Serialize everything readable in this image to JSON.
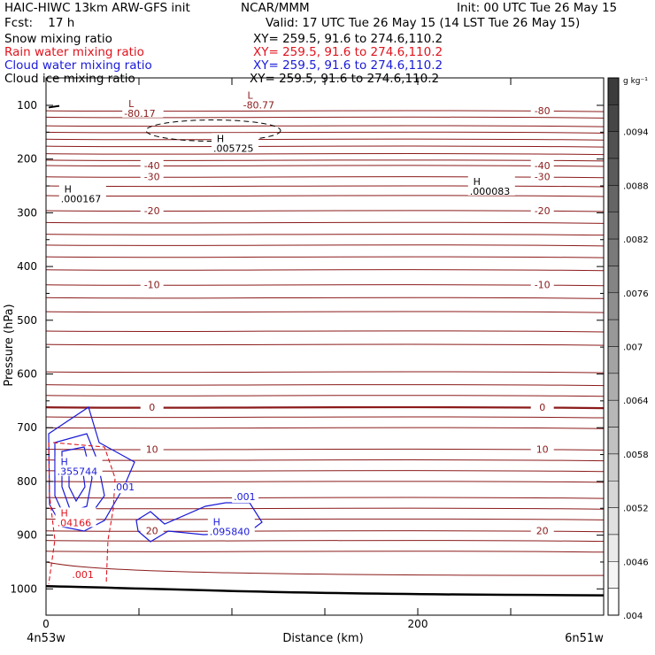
{
  "header": {
    "title": "HAIC-HIWC 13km ARW-GFS init",
    "org": "NCAR/MMM",
    "init": "Init: 00 UTC Tue 26 May 15",
    "fcst": "Fcst:    17 h",
    "valid": "Valid: 17 UTC Tue 26 May 15 (14 LST Tue 26 May 15)",
    "fields": [
      {
        "name": "Snow mixing ratio",
        "xy": "XY= 259.5, 91.6 to 274.6,110.2",
        "color": "#000000"
      },
      {
        "name": "Rain water mixing ratio",
        "xy": "XY= 259.5, 91.6 to 274.6,110.2",
        "color": "#e0141e"
      },
      {
        "name": "Cloud water mixing ratio",
        "xy": "XY= 259.5, 91.6 to 274.6,110.2",
        "color": "#1a1ad8"
      },
      {
        "name": "Cloud ice mixing ratio",
        "xy": "XY= 259.5, 91.6 to 274.6,110.2",
        "color": "#000000"
      }
    ]
  },
  "chart_data": {
    "type": "cross-section",
    "xlabel": "Distance (km)",
    "ylabel": "Pressure (hPa)",
    "xlim": [
      0,
      300
    ],
    "ylim": [
      1015,
      50
    ],
    "x_ticks": [
      {
        "v": 0,
        "label": "0"
      },
      {
        "v": 200,
        "label": "200"
      }
    ],
    "x_endpoints": {
      "left": "4n53w",
      "right": "6n51w"
    },
    "y_ticks": [
      100,
      200,
      300,
      400,
      500,
      600,
      700,
      800,
      900,
      1000
    ],
    "temperature_contour_color": "#8b1a1a",
    "temperature_levels": [
      {
        "p": 110,
        "label": "-80"
      },
      {
        "p": 212,
        "label": "-40"
      },
      {
        "p": 233,
        "label": "-30"
      },
      {
        "p": 296,
        "label": "-20"
      },
      {
        "p": 434,
        "label": "-10"
      },
      {
        "p": 662,
        "label": "0"
      },
      {
        "p": 740,
        "label": "10"
      },
      {
        "p": 892,
        "label": "20"
      }
    ],
    "extrema": [
      {
        "type": "L",
        "value": "-80.17",
        "x": 42,
        "p": 103,
        "color": "#8b1a1a"
      },
      {
        "type": "L",
        "value": "-80.77",
        "x": 106,
        "p": 88,
        "color": "#8b1a1a"
      },
      {
        "type": "H",
        "value": ".005725",
        "x": 90,
        "p": 168,
        "color": "#000000"
      },
      {
        "type": "H",
        "value": ".000167",
        "x": 8,
        "p": 262,
        "color": "#000000"
      },
      {
        "type": "H",
        "value": ".000083",
        "x": 228,
        "p": 248,
        "color": "#000000"
      },
      {
        "type": "H",
        "value": ".355744",
        "x": 6,
        "p": 770,
        "color": "#1a1ad8"
      },
      {
        "type": "H",
        "value": ".04166",
        "x": 6,
        "p": 865,
        "color": "#e0141e"
      },
      {
        "type": "H",
        "value": ".095840",
        "x": 88,
        "p": 882,
        "color": "#1a1ad8"
      }
    ],
    "contour_labels": [
      {
        "text": ".001",
        "x": 36,
        "p": 817,
        "color": "#1a1ad8"
      },
      {
        "text": ".001",
        "x": 101,
        "p": 835,
        "color": "#1a1ad8"
      },
      {
        "text": ".001",
        "x": 14,
        "p": 980,
        "color": "#e0141e"
      }
    ],
    "colorbar": {
      "unit": "g kg⁻¹",
      "ticks": [
        ".0094",
        ".0088",
        ".0082",
        ".0076",
        ".007",
        ".0064",
        ".0058",
        ".0052",
        ".0046",
        ".004"
      ]
    }
  }
}
